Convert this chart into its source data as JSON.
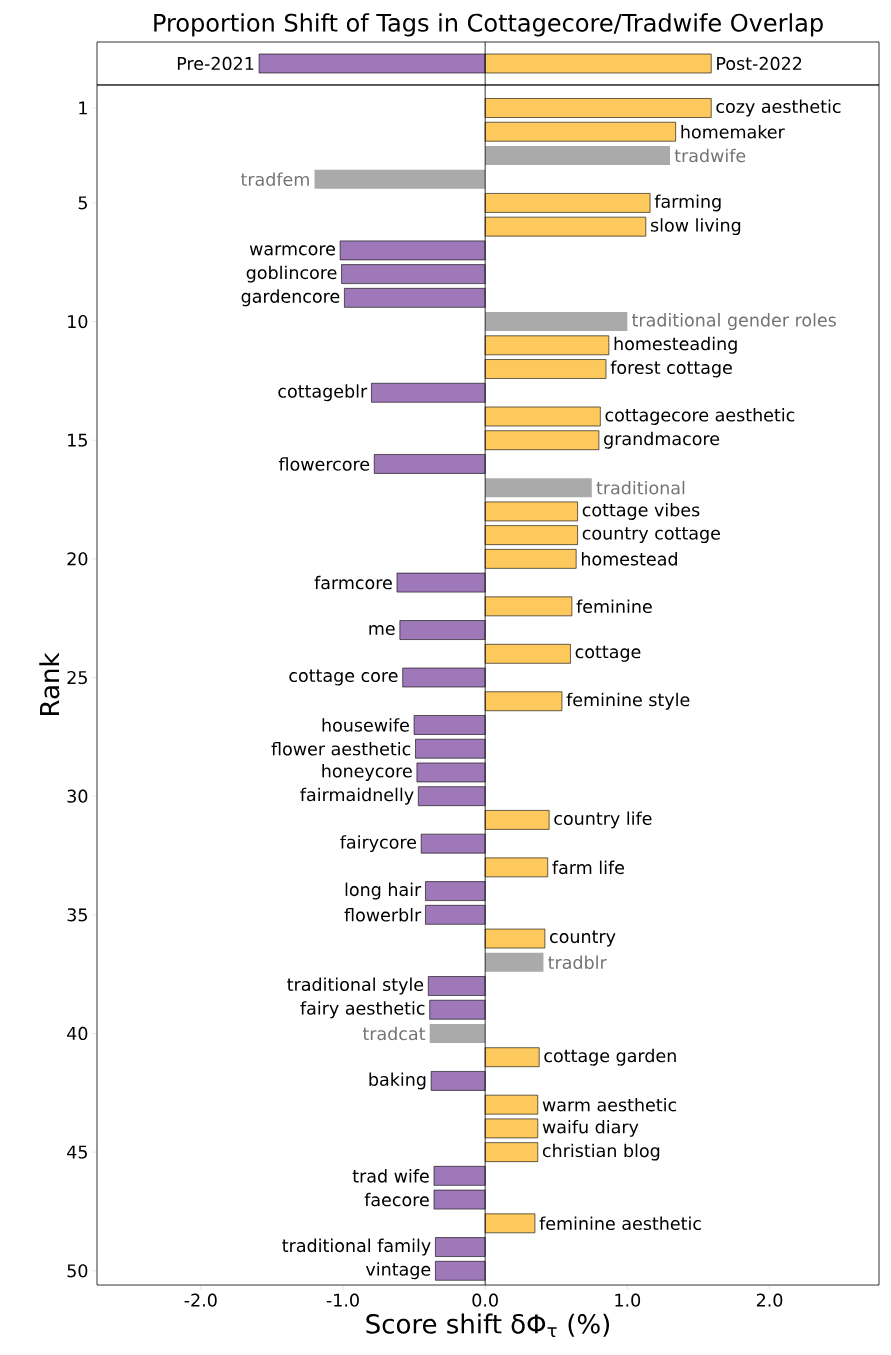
{
  "chart_data": [
    {
      "type": "bar",
      "orientation": "horizontal",
      "title": "Proportion Shift of Tags in Cottagecore/Tradwife Overlap",
      "categories": [
        null
      ],
      "xlim": [
        -2.73,
        2.77
      ],
      "stacked": true,
      "series": [
        {
          "name": "Pre-2021",
          "color": "#9e78b8",
          "values": [
            -1.59
          ]
        },
        {
          "name": "Post-2022",
          "color": "#fdc95c",
          "values": [
            1.59
          ]
        }
      ],
      "ref_lines": [
        {
          "axis": "x",
          "value": 0
        }
      ]
    },
    {
      "type": "bar",
      "orientation": "horizontal",
      "xlabel": "Score shift δΦ$_{τ}$ (%)",
      "ylabel": "Rank",
      "x": [
        1,
        2,
        3,
        4,
        5,
        6,
        7,
        8,
        9,
        10,
        11,
        12,
        13,
        14,
        15,
        16,
        17,
        18,
        19,
        20,
        21,
        22,
        23,
        24,
        25,
        26,
        27,
        28,
        29,
        30,
        31,
        32,
        33,
        34,
        35,
        36,
        37,
        38,
        39,
        40,
        41,
        42,
        43,
        44,
        45,
        46,
        47,
        48,
        49,
        50
      ],
      "values": [
        1.59,
        1.34,
        1.3,
        -1.2,
        1.16,
        1.13,
        -1.02,
        -1.01,
        -0.99,
        1.0,
        0.87,
        0.85,
        -0.8,
        0.81,
        0.8,
        -0.78,
        0.75,
        0.65,
        0.65,
        0.64,
        -0.62,
        0.61,
        -0.6,
        0.6,
        -0.58,
        0.54,
        -0.5,
        -0.49,
        -0.48,
        -0.47,
        0.45,
        -0.45,
        0.44,
        -0.42,
        -0.42,
        0.42,
        0.41,
        -0.4,
        -0.39,
        -0.39,
        0.38,
        -0.38,
        0.37,
        0.37,
        0.37,
        -0.36,
        -0.36,
        0.35,
        -0.35,
        -0.35
      ],
      "colors": [
        "#fdc95c",
        "#fdc95c",
        "#aaaaaa",
        "#aaaaaa",
        "#fdc95c",
        "#fdc95c",
        "#9e78b8",
        "#9e78b8",
        "#9e78b8",
        "#aaaaaa",
        "#fdc95c",
        "#fdc95c",
        "#9e78b8",
        "#fdc95c",
        "#fdc95c",
        "#9e78b8",
        "#aaaaaa",
        "#fdc95c",
        "#fdc95c",
        "#fdc95c",
        "#9e78b8",
        "#fdc95c",
        "#9e78b8",
        "#fdc95c",
        "#9e78b8",
        "#fdc95c",
        "#9e78b8",
        "#9e78b8",
        "#9e78b8",
        "#9e78b8",
        "#fdc95c",
        "#9e78b8",
        "#fdc95c",
        "#9e78b8",
        "#9e78b8",
        "#fdc95c",
        "#aaaaaa",
        "#9e78b8",
        "#9e78b8",
        "#aaaaaa",
        "#fdc95c",
        "#9e78b8",
        "#fdc95c",
        "#fdc95c",
        "#fdc95c",
        "#9e78b8",
        "#9e78b8",
        "#fdc95c",
        "#9e78b8",
        "#9e78b8"
      ],
      "value_labels": [
        "cozy aesthetic",
        "homemaker",
        "tradwife",
        "tradfem",
        "farming",
        "slow living",
        "warmcore",
        "goblincore",
        "gardencore",
        "traditional gender roles",
        "homesteading",
        "forest cottage",
        "cottageblr",
        "cottagecore aesthetic",
        "grandmacore",
        "flowercore",
        "traditional",
        "cottage vibes",
        "country cottage",
        "homestead",
        "farmcore",
        "feminine",
        "me",
        "cottage",
        "cottage core",
        "feminine style",
        "housewife",
        "flower aesthetic",
        "honeycore",
        "fairmaidnelly",
        "country life",
        "fairycore",
        "farm life",
        "long hair",
        "flowerblr",
        "country",
        "tradblr",
        "traditional style",
        "fairy aesthetic",
        "tradcat",
        "cottage garden",
        "baking",
        "warm aesthetic",
        "waifu diary",
        "christian blog",
        "trad wife",
        "faecore",
        "feminine aesthetic",
        "traditional family",
        "vintage"
      ],
      "xlim": [
        -2.73,
        2.77
      ],
      "xticks": [
        {
          "value": -2,
          "label": "-2.0"
        },
        {
          "value": -1,
          "label": "-1.0"
        },
        {
          "value": 0,
          "label": "0.0"
        },
        {
          "value": 1,
          "label": "1.0"
        },
        {
          "value": 2,
          "label": "2.0"
        }
      ],
      "ylim": [
        50.6,
        0.03
      ],
      "yticks": [
        1,
        5,
        10,
        15,
        20,
        25,
        30,
        35,
        40,
        45,
        50
      ],
      "ref_lines": [
        {
          "axis": "x",
          "value": 0
        }
      ]
    }
  ]
}
